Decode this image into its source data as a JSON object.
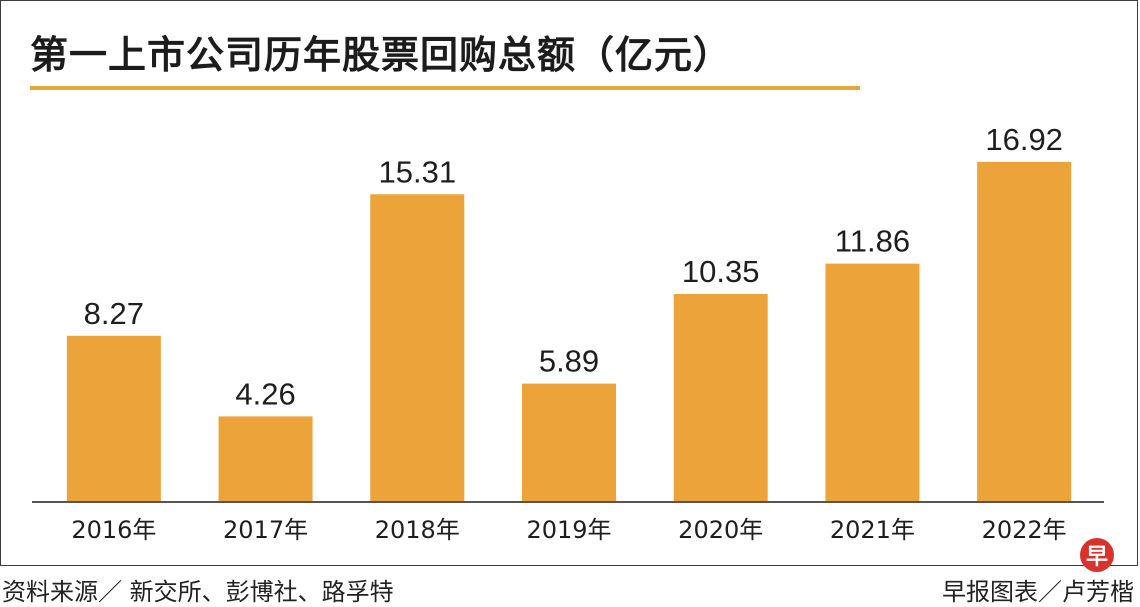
{
  "chart_data": {
    "type": "bar",
    "title": "第一上市公司历年股票回购总额（亿元）",
    "categories": [
      "2016年",
      "2017年",
      "2018年",
      "2019年",
      "2020年",
      "2021年",
      "2022年"
    ],
    "values": [
      8.27,
      4.26,
      15.31,
      5.89,
      10.35,
      11.86,
      16.92
    ],
    "data_labels": [
      "8.27",
      "4.26",
      "15.31",
      "5.89",
      "10.35",
      "11.86",
      "16.92"
    ],
    "xlabel": "",
    "ylabel": "",
    "ylim": [
      0,
      20
    ],
    "grid": false,
    "bar_color": "#eca43a",
    "title_rule_color": "#e9a43a"
  },
  "footer": {
    "source": "资料来源／ 新交所、彭博社、路孚特",
    "credit": "早报图表／卢芳楷"
  },
  "logo_glyph": "早",
  "logo_color": "#d8322b"
}
